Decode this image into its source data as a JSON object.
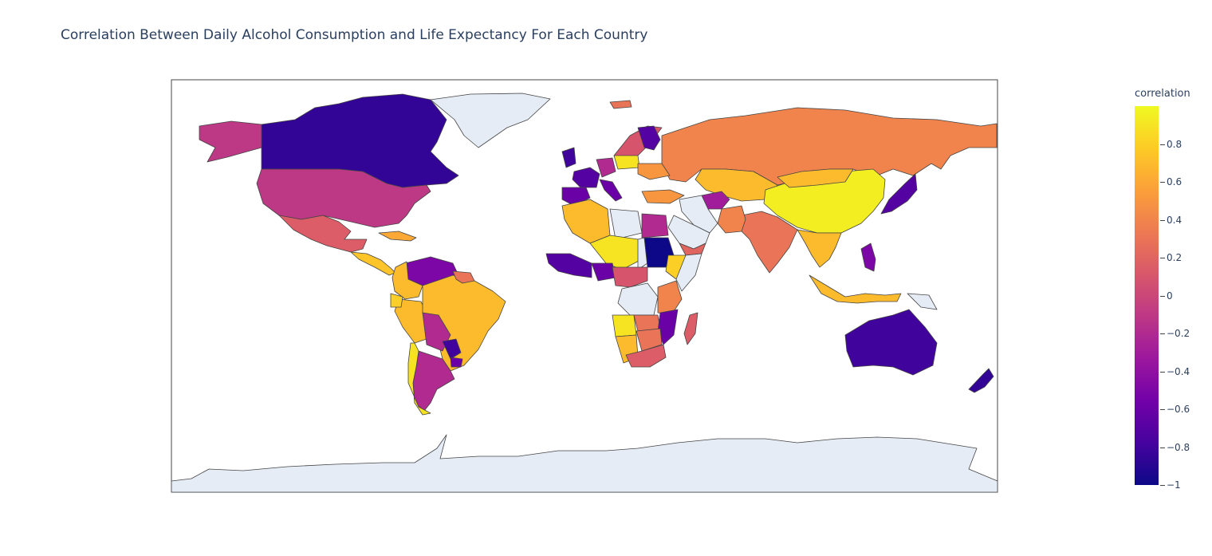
{
  "title": "Correlation Between Daily Alcohol Consumption and Life Expectancy For Each Country",
  "colorbar": {
    "title": "correlation",
    "ticks": [
      "0.8",
      "0.6",
      "0.4",
      "0.2",
      "0",
      "−0.2",
      "−0.4",
      "−0.6",
      "−0.8",
      "−1"
    ],
    "tick_values": [
      0.8,
      0.6,
      0.4,
      0.2,
      0,
      -0.2,
      -0.4,
      -0.6,
      -0.8,
      -1
    ],
    "range": [
      -1,
      1
    ],
    "colorscale": [
      "#0d0887",
      "#46039f",
      "#7201a8",
      "#9c179e",
      "#bd3786",
      "#d8576b",
      "#ed7953",
      "#fb9f3a",
      "#fdca26",
      "#f0f921"
    ]
  },
  "colors": {
    "no_data": "#e5ecf6",
    "border": "#444444",
    "frame": "#444444"
  },
  "map_data": {
    "type": "choropleth",
    "projection": "equirectangular",
    "value_name": "correlation",
    "countries": [
      {
        "name": "Canada",
        "value": -0.85
      },
      {
        "name": "Alaska (United States)",
        "value": -0.1
      },
      {
        "name": "United States",
        "value": -0.1
      },
      {
        "name": "Greenland",
        "value": null
      },
      {
        "name": "Mexico",
        "value": 0.15
      },
      {
        "name": "Guatemala / Central America",
        "value": 0.75
      },
      {
        "name": "Cuba",
        "value": 0.6
      },
      {
        "name": "Venezuela",
        "value": -0.5
      },
      {
        "name": "Colombia",
        "value": 0.7
      },
      {
        "name": "Peru",
        "value": 0.7
      },
      {
        "name": "Ecuador",
        "value": 0.8
      },
      {
        "name": "Brazil",
        "value": 0.7
      },
      {
        "name": "Bolivia",
        "value": -0.2
      },
      {
        "name": "Paraguay",
        "value": -0.8
      },
      {
        "name": "Argentina",
        "value": -0.2
      },
      {
        "name": "Chile",
        "value": 0.9
      },
      {
        "name": "Uruguay",
        "value": -0.6
      },
      {
        "name": "Guyana / Suriname",
        "value": 0.3
      },
      {
        "name": "Russia",
        "value": 0.4
      },
      {
        "name": "Kazakhstan",
        "value": 0.7
      },
      {
        "name": "China",
        "value": 0.95
      },
      {
        "name": "Mongolia",
        "value": 0.7
      },
      {
        "name": "Japan",
        "value": -0.7
      },
      {
        "name": "India",
        "value": 0.3
      },
      {
        "name": "Pakistan",
        "value": 0.4
      },
      {
        "name": "Afghanistan",
        "value": -0.3
      },
      {
        "name": "Iran",
        "value": null
      },
      {
        "name": "Turkey",
        "value": 0.5
      },
      {
        "name": "Saudi Arabia",
        "value": null
      },
      {
        "name": "Yemen",
        "value": 0.2
      },
      {
        "name": "Southeast Asia",
        "value": 0.7
      },
      {
        "name": "Indonesia",
        "value": 0.7
      },
      {
        "name": "Philippines",
        "value": -0.5
      },
      {
        "name": "Papua New Guinea",
        "value": null
      },
      {
        "name": "Australia",
        "value": -0.8
      },
      {
        "name": "New Zealand",
        "value": -0.85
      },
      {
        "name": "Norway / Sweden",
        "value": 0.1
      },
      {
        "name": "Finland",
        "value": -0.7
      },
      {
        "name": "Iceland",
        "value": 0.3
      },
      {
        "name": "United Kingdom",
        "value": -0.8
      },
      {
        "name": "France",
        "value": -0.7
      },
      {
        "name": "Spain",
        "value": -0.6
      },
      {
        "name": "Germany",
        "value": -0.2
      },
      {
        "name": "Italy",
        "value": -0.6
      },
      {
        "name": "Poland",
        "value": 0.9
      },
      {
        "name": "Ukraine",
        "value": 0.5
      },
      {
        "name": "Algeria",
        "value": 0.7
      },
      {
        "name": "Libya",
        "value": null
      },
      {
        "name": "Egypt",
        "value": -0.2
      },
      {
        "name": "Mali / Niger",
        "value": 0.9
      },
      {
        "name": "Chad",
        "value": null
      },
      {
        "name": "Sudan",
        "value": -1.0
      },
      {
        "name": "Ethiopia",
        "value": 0.8
      },
      {
        "name": "Somalia",
        "value": null
      },
      {
        "name": "Nigeria",
        "value": -0.6
      },
      {
        "name": "West Africa coast",
        "value": -0.7
      },
      {
        "name": "Cameroon / Central African Republic",
        "value": 0.1
      },
      {
        "name": "DR Congo",
        "value": null
      },
      {
        "name": "Angola",
        "value": 0.9
      },
      {
        "name": "Zambia",
        "value": 0.3
      },
      {
        "name": "Tanzania / Kenya",
        "value": 0.4
      },
      {
        "name": "Mozambique",
        "value": -0.6
      },
      {
        "name": "Namibia",
        "value": 0.7
      },
      {
        "name": "Botswana / Zimbabwe",
        "value": 0.3
      },
      {
        "name": "South Africa",
        "value": 0.15
      },
      {
        "name": "Madagascar",
        "value": 0.15
      },
      {
        "name": "Antarctica",
        "value": null
      }
    ]
  }
}
